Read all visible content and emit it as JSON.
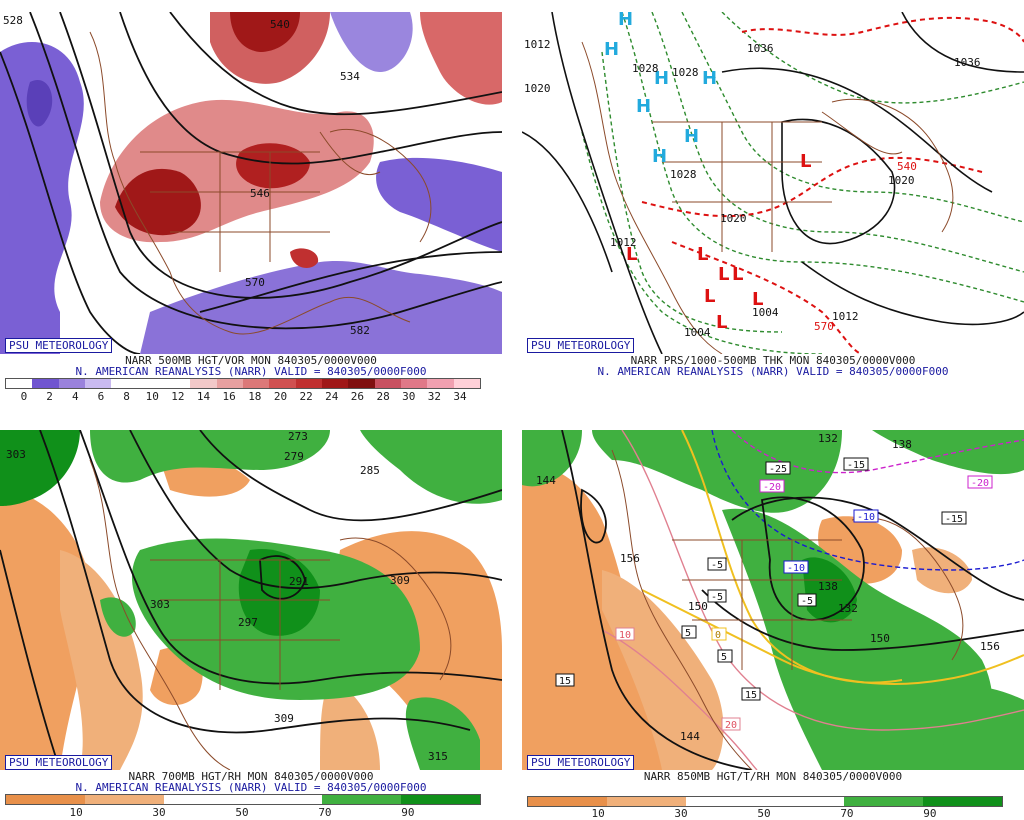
{
  "badge": "PSU METEOROLOGY",
  "panels": [
    {
      "caption1": "NARR 500MB HGT/VOR MON 840305/0000V000",
      "caption2": "N. AMERICAN REANALYSIS (NARR) VALID = 840305/0000F000",
      "colorbar": [
        "#ffffff",
        "#7055d0",
        "#9a82dc",
        "#c9baf0",
        "#ffffff",
        "#ffffff",
        "#ffffff",
        "#f2c8c8",
        "#e8a0a0",
        "#dc7878",
        "#d05050",
        "#c03030",
        "#a01818",
        "#801010",
        "#c85060",
        "#e07888",
        "#f0a0b0",
        "#ffd0d8"
      ],
      "ticks": [
        "0",
        "2",
        "4",
        "6",
        "8",
        "10",
        "12",
        "14",
        "16",
        "18",
        "20",
        "22",
        "24",
        "26",
        "28",
        "30",
        "32",
        "34"
      ],
      "labels": [
        "540",
        "534",
        "546",
        "570",
        "582",
        "528"
      ]
    },
    {
      "caption1": "NARR PRS/1000-500MB THK MON 840305/0000V000",
      "caption2": "N. AMERICAN REANALYSIS (NARR) VALID = 840305/0000F000",
      "labels": [
        "1012",
        "1020",
        "1028",
        "1028",
        "1036",
        "1028",
        "1020",
        "1012",
        "1004",
        "1012",
        "1004",
        "540",
        "570",
        "1020",
        "1036"
      ],
      "highs": [
        "H",
        "H",
        "H",
        "H",
        "H",
        "H",
        "H"
      ],
      "lows": [
        "L",
        "L",
        "L",
        "L",
        "L",
        "L",
        "L",
        "L"
      ]
    },
    {
      "caption1": "NARR 700MB HGT/RH MON 840305/0000V000",
      "caption2": "N. AMERICAN REANALYSIS (NARR) VALID = 840305/0000F000",
      "colorbar": [
        "#e8904a",
        "#f0b07a",
        "#ffffff",
        "#ffffff",
        "#40b040",
        "#10901a"
      ],
      "ticks": [
        "10",
        "30",
        "50",
        "70",
        "90"
      ],
      "labels": [
        "273",
        "279",
        "285",
        "291",
        "297",
        "303",
        "309",
        "315",
        "303",
        "309"
      ]
    },
    {
      "caption1": "NARR 850MB HGT/T/RH MON 840305/0000V000",
      "caption2": "",
      "colorbar": [
        "#e8904a",
        "#f0b07a",
        "#ffffff",
        "#ffffff",
        "#40b040",
        "#10901a"
      ],
      "ticks": [
        "10",
        "30",
        "50",
        "70",
        "90"
      ],
      "labels": [
        "132",
        "138",
        "144",
        "150",
        "156",
        "150",
        "156",
        "144",
        "138",
        "132"
      ],
      "temps": [
        "-25",
        "-15",
        "-20",
        "-10",
        "-15",
        "-20",
        "-10",
        "-5",
        "-5",
        "-5",
        "0",
        "5",
        "15",
        "10",
        "15",
        "20",
        "5"
      ]
    }
  ]
}
